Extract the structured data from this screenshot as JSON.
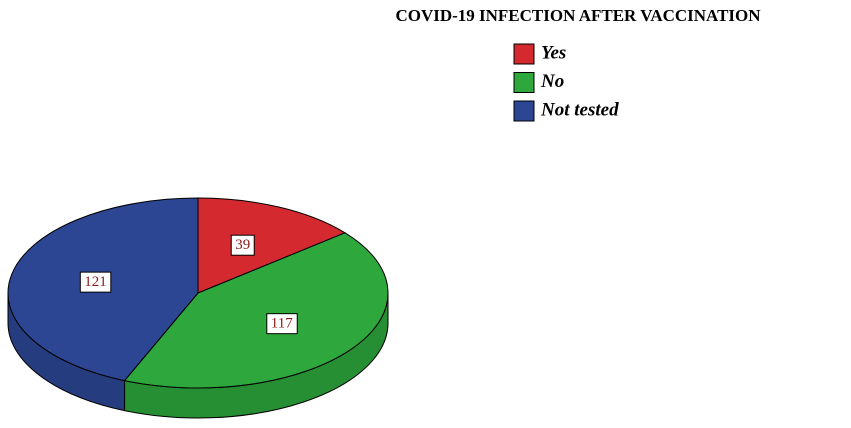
{
  "chart_data": {
    "type": "pie3d",
    "title": "COVID-19 INFECTION AFTER VACCINATION",
    "categories": [
      "Yes",
      "No",
      "Not tested"
    ],
    "values": [
      39,
      117,
      121
    ],
    "colors": [
      "#d42a2f",
      "#2ea83c",
      "#2c4694"
    ]
  }
}
